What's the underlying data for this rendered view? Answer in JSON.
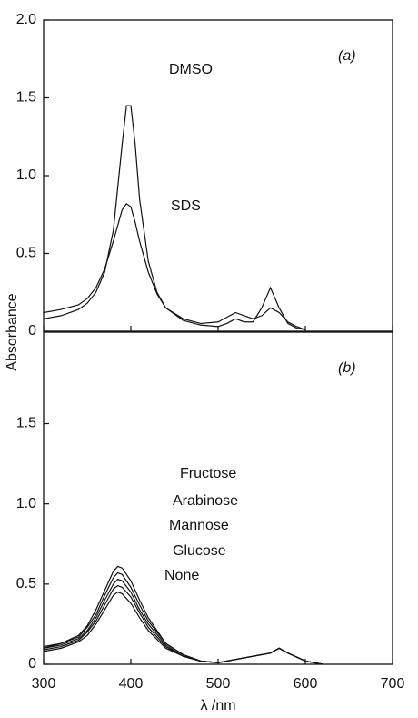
{
  "ylabel": "Absorbance",
  "xlabel": "λ /nm",
  "chart_data": [
    {
      "type": "line",
      "panel_label": "(a)",
      "x": [
        300,
        320,
        340,
        350,
        360,
        370,
        380,
        390,
        395,
        400,
        405,
        410,
        420,
        430,
        440,
        460,
        480,
        500,
        510,
        520,
        530,
        540,
        550,
        560,
        570,
        580,
        590,
        600
      ],
      "series": [
        {
          "name": "DMSO",
          "color": "#111111",
          "values": [
            0.08,
            0.1,
            0.14,
            0.18,
            0.25,
            0.38,
            0.65,
            1.2,
            1.45,
            1.45,
            1.2,
            0.85,
            0.45,
            0.25,
            0.15,
            0.07,
            0.04,
            0.03,
            0.05,
            0.08,
            0.06,
            0.06,
            0.15,
            0.28,
            0.15,
            0.05,
            0.02,
            0.01
          ]
        },
        {
          "name": "SDS",
          "color": "#111111",
          "values": [
            0.12,
            0.14,
            0.17,
            0.21,
            0.28,
            0.4,
            0.58,
            0.78,
            0.82,
            0.8,
            0.7,
            0.58,
            0.38,
            0.24,
            0.15,
            0.08,
            0.05,
            0.06,
            0.09,
            0.12,
            0.1,
            0.08,
            0.1,
            0.15,
            0.12,
            0.06,
            0.03,
            0.01
          ]
        }
      ],
      "xlim": [
        300,
        700
      ],
      "ylim": [
        0,
        2
      ],
      "yticks": [
        0,
        0.5,
        {
          "value": 1,
          "label": "1.0"
        },
        1.5,
        {
          "value": 2,
          "label": "2.0"
        }
      ]
    },
    {
      "type": "line",
      "panel_label": "(b)",
      "x": [
        300,
        320,
        340,
        350,
        360,
        370,
        380,
        385,
        390,
        400,
        410,
        420,
        440,
        460,
        480,
        500,
        520,
        540,
        560,
        570,
        580,
        600,
        620
      ],
      "series": [
        {
          "name": "Fructose",
          "color": "#111111",
          "values": [
            0.11,
            0.13,
            0.18,
            0.24,
            0.34,
            0.46,
            0.58,
            0.61,
            0.6,
            0.52,
            0.4,
            0.29,
            0.13,
            0.06,
            0.02,
            0.01,
            0.03,
            0.05,
            0.07,
            0.1,
            0.07,
            0.02,
            0
          ]
        },
        {
          "name": "Arabinose",
          "color": "#111111",
          "values": [
            0.1,
            0.13,
            0.17,
            0.23,
            0.31,
            0.43,
            0.54,
            0.57,
            0.56,
            0.48,
            0.37,
            0.27,
            0.13,
            0.06,
            0.02,
            0.01,
            0.03,
            0.05,
            0.07,
            0.1,
            0.07,
            0.02,
            0
          ]
        },
        {
          "name": "Mannose",
          "color": "#111111",
          "values": [
            0.1,
            0.12,
            0.16,
            0.21,
            0.29,
            0.4,
            0.5,
            0.53,
            0.52,
            0.45,
            0.34,
            0.25,
            0.12,
            0.05,
            0.02,
            0.01,
            0.03,
            0.05,
            0.07,
            0.1,
            0.07,
            0.02,
            0
          ]
        },
        {
          "name": "Glucose",
          "color": "#111111",
          "values": [
            0.09,
            0.11,
            0.15,
            0.2,
            0.27,
            0.37,
            0.47,
            0.49,
            0.48,
            0.42,
            0.32,
            0.23,
            0.11,
            0.05,
            0.02,
            0.01,
            0.03,
            0.05,
            0.07,
            0.1,
            0.07,
            0.02,
            0
          ]
        },
        {
          "name": "None",
          "color": "#111111",
          "values": [
            0.08,
            0.1,
            0.14,
            0.18,
            0.25,
            0.34,
            0.43,
            0.45,
            0.44,
            0.38,
            0.29,
            0.21,
            0.1,
            0.05,
            0.02,
            0.01,
            0.03,
            0.05,
            0.07,
            0.1,
            0.07,
            0.02,
            0
          ]
        }
      ],
      "xlim": [
        300,
        700
      ],
      "ylim": [
        0,
        2.07
      ],
      "xticks": [
        300,
        400,
        500,
        600,
        700
      ],
      "yticks": [
        0,
        0.5,
        {
          "value": 1,
          "label": "1.0"
        },
        1.5
      ]
    }
  ]
}
